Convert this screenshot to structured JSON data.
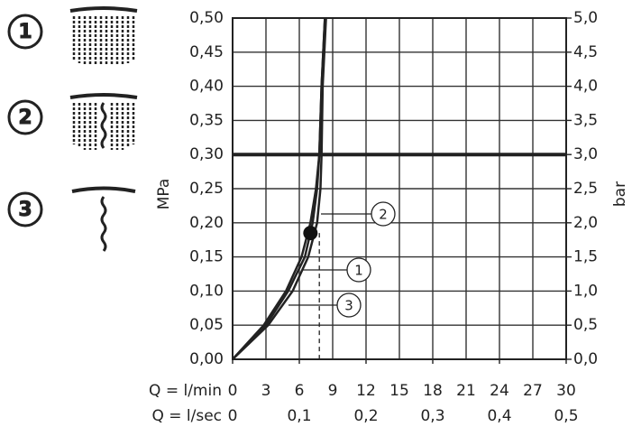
{
  "chart_data": {
    "type": "line",
    "x_label_1": "Q = l/min",
    "x_label_2": "Q = l/sec",
    "y_label": "MPa",
    "y2_label": "bar",
    "xlim": [
      0,
      30
    ],
    "xticks": [
      0,
      3,
      6,
      9,
      12,
      15,
      18,
      21,
      24,
      27,
      30
    ],
    "x2ticks": [
      {
        "value": 0,
        "label": "0"
      },
      {
        "value": 6,
        "label": "0,1"
      },
      {
        "value": 12,
        "label": "0,2"
      },
      {
        "value": 18,
        "label": "0,3"
      },
      {
        "value": 24,
        "label": "0,4"
      },
      {
        "value": 30,
        "label": "0,5"
      }
    ],
    "ylim": [
      0,
      0.5
    ],
    "yticks": [
      {
        "value": 0,
        "label": "0,00"
      },
      {
        "value": 0.05,
        "label": "0,05"
      },
      {
        "value": 0.1,
        "label": "0,10"
      },
      {
        "value": 0.15,
        "label": "0,15"
      },
      {
        "value": 0.2,
        "label": "0,20"
      },
      {
        "value": 0.25,
        "label": "0,25"
      },
      {
        "value": 0.3,
        "label": "0,30"
      },
      {
        "value": 0.35,
        "label": "0,35"
      },
      {
        "value": 0.4,
        "label": "0,40"
      },
      {
        "value": 0.45,
        "label": "0,45"
      },
      {
        "value": 0.5,
        "label": "0,50"
      }
    ],
    "y2lim": [
      0,
      5
    ],
    "y2ticks": [
      {
        "value": 0,
        "label": "0,0"
      },
      {
        "value": 0.5,
        "label": "0,5"
      },
      {
        "value": 1,
        "label": "1,0"
      },
      {
        "value": 1.5,
        "label": "1,5"
      },
      {
        "value": 2,
        "label": "2,0"
      },
      {
        "value": 2.5,
        "label": "2,5"
      },
      {
        "value": 3,
        "label": "3,0"
      },
      {
        "value": 3.5,
        "label": "3,5"
      },
      {
        "value": 4,
        "label": "4,0"
      },
      {
        "value": 4.5,
        "label": "4,5"
      },
      {
        "value": 5,
        "label": "5,0"
      }
    ],
    "grid": true,
    "reference_line_y": 0.3,
    "reference_line_x": 7.8,
    "operating_point": {
      "x": 7,
      "y": 0.185
    },
    "series": [
      {
        "name": "1",
        "color": "#222222",
        "x": [
          0,
          3,
          5,
          6.5,
          7.2,
          7.6,
          7.8,
          8.0,
          8.3
        ],
        "values": [
          0,
          0.05,
          0.1,
          0.15,
          0.2,
          0.25,
          0.3,
          0.4,
          0.5
        ]
      },
      {
        "name": "2",
        "color": "#222222",
        "x": [
          0,
          3.2,
          5.4,
          6.8,
          7.6,
          7.9,
          8.0,
          8.1,
          8.4
        ],
        "values": [
          0,
          0.05,
          0.1,
          0.15,
          0.2,
          0.25,
          0.3,
          0.4,
          0.5
        ]
      },
      {
        "name": "3",
        "color": "#222222",
        "x": [
          0,
          2.8,
          4.8,
          6.2,
          7.0,
          7.5,
          7.8,
          8.0,
          8.3
        ],
        "values": [
          0,
          0.05,
          0.1,
          0.15,
          0.2,
          0.25,
          0.3,
          0.4,
          0.5
        ]
      }
    ]
  }
}
